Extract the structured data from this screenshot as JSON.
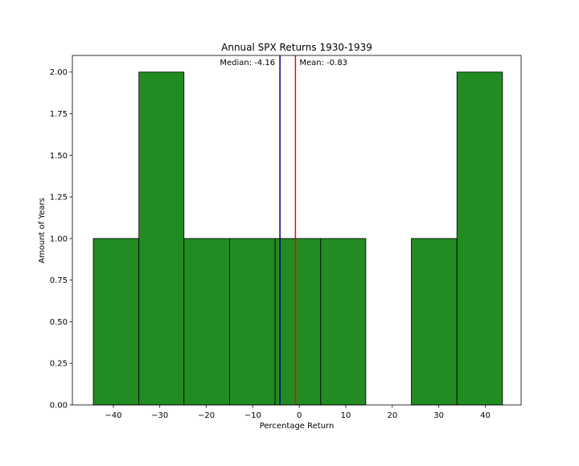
{
  "chart_data": {
    "type": "bar",
    "title": "Annual SPX Returns 1930-1939",
    "xlabel": "Percentage Return",
    "ylabel": "Amount of Years",
    "xlim": [
      -48.8,
      47.7
    ],
    "ylim": [
      0,
      2.1
    ],
    "xticks": [
      -40,
      -30,
      -20,
      -10,
      0,
      10,
      20,
      30,
      40
    ],
    "yticks": [
      0.0,
      0.25,
      0.5,
      0.75,
      1.0,
      1.25,
      1.5,
      1.75,
      2.0
    ],
    "ytick_labels": [
      "0.00",
      "0.25",
      "0.50",
      "0.75",
      "1.00",
      "1.25",
      "1.50",
      "1.75",
      "2.00"
    ],
    "grid": false,
    "bins": [
      {
        "x0": -44.3,
        "x1": -34.5,
        "count": 1
      },
      {
        "x0": -34.5,
        "x1": -24.8,
        "count": 2
      },
      {
        "x0": -24.8,
        "x1": -15.0,
        "count": 1
      },
      {
        "x0": -15.0,
        "x1": -5.2,
        "count": 1
      },
      {
        "x0": -5.2,
        "x1": 4.6,
        "count": 1
      },
      {
        "x0": 4.6,
        "x1": 14.3,
        "count": 1
      },
      {
        "x0": 14.3,
        "x1": 24.1,
        "count": 0
      },
      {
        "x0": 24.1,
        "x1": 33.9,
        "count": 1
      },
      {
        "x0": 33.9,
        "x1": 43.7,
        "count": 2
      }
    ],
    "bar_color": "#228b22",
    "edge_color": "#000000",
    "lines": [
      {
        "name": "median",
        "label": "Median: -4.16",
        "x": -4.16,
        "color": "#00008b"
      },
      {
        "name": "mean",
        "label": "Mean: -0.83",
        "x": -0.83,
        "color": "#ff0000"
      }
    ]
  }
}
